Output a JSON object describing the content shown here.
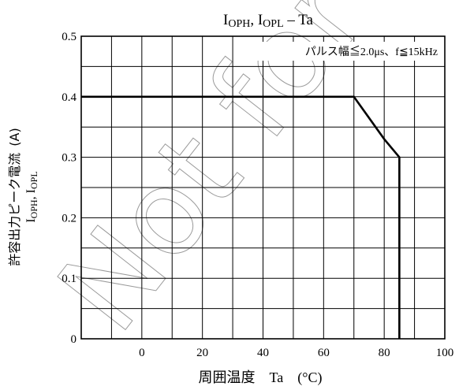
{
  "chart_data": {
    "type": "line",
    "title": "IOPH, IOPL – Ta",
    "xlabel": "周囲温度　Ta　(°C)",
    "ylabel_line1": "許容出力ピーク電流",
    "ylabel_unit": "(A)",
    "ylabel_line2": "IOPH, IOPL",
    "annotation": "パルス幅≦2.0μs、f≦15kHz",
    "watermark": "Not for new design",
    "xlim": [
      -20,
      100
    ],
    "ylim": [
      0,
      0.5
    ],
    "x_ticks": [
      {
        "value": 0,
        "label": "0"
      },
      {
        "value": 20,
        "label": "20"
      },
      {
        "value": 40,
        "label": "40"
      },
      {
        "value": 60,
        "label": "60"
      },
      {
        "value": 80,
        "label": "80"
      },
      {
        "value": 100,
        "label": "100"
      }
    ],
    "y_ticks": [
      {
        "value": 0,
        "label": "0"
      },
      {
        "value": 0.1,
        "label": "0.1"
      },
      {
        "value": 0.2,
        "label": "0.2"
      },
      {
        "value": 0.3,
        "label": "0.3"
      },
      {
        "value": 0.4,
        "label": "0.4"
      },
      {
        "value": 0.5,
        "label": "0.5"
      }
    ],
    "grid_x_step": 10,
    "grid_y_step": 0.05,
    "grid": true,
    "series": [
      {
        "x": [
          -20,
          70,
          80,
          85,
          85
        ],
        "y": [
          0.4,
          0.4,
          0.33,
          0.3,
          0
        ]
      }
    ]
  }
}
